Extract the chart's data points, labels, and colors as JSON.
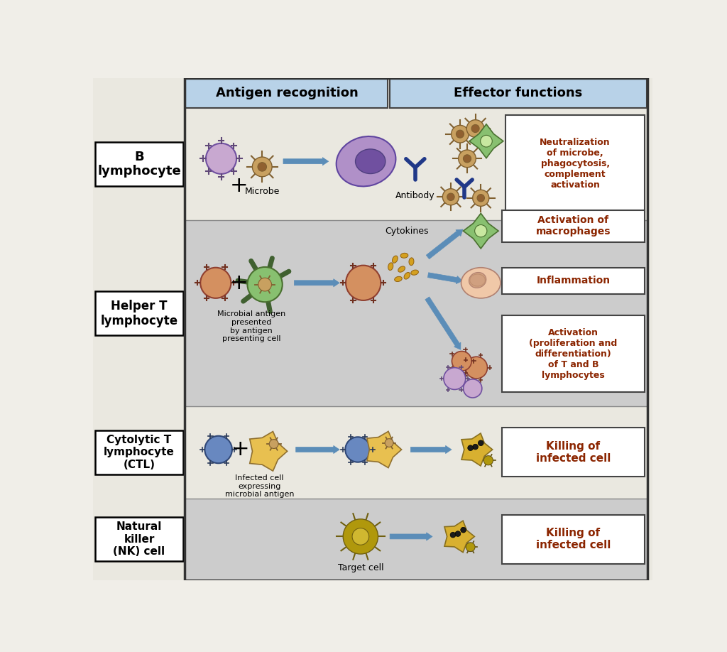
{
  "bg_color": "#E8E8E8",
  "white_bg": "#ffffff",
  "gray_bg": "#C8C8C8",
  "header_bg": "#B0C8DC",
  "title_color": "#8B2500",
  "border_color": "#444444",
  "row_labels": [
    "B\nlymphocyte",
    "Helper T\nlymphocyte",
    "Cytolytic T\nlymphocyte\n(CTL)",
    "Natural\nkiller\n(NK) cell"
  ],
  "col_headers": [
    "Antigen recognition",
    "Effector functions"
  ],
  "effector_boxes": [
    "Neutralization\nof microbe,\nphagocytosis,\ncomplement\nactivation",
    "Activation of\nmacrophages",
    "Inflammation",
    "Activation\n(proliferation and\ndifferentiation)\nof T and B\nlymphocytes",
    "Killing of\ninfected cell",
    "Killing of\ninfected cell"
  ],
  "annotations": {
    "microbe": "Microbe",
    "antibody": "Antibody",
    "cytokines": "Cytokines",
    "microbial_antigen": "Microbial antigen\npresented\nby antigen\npresenting cell",
    "infected_cell": "Infected cell\nexpressing\nmicrobial antigen",
    "target_cell": "Target cell"
  }
}
